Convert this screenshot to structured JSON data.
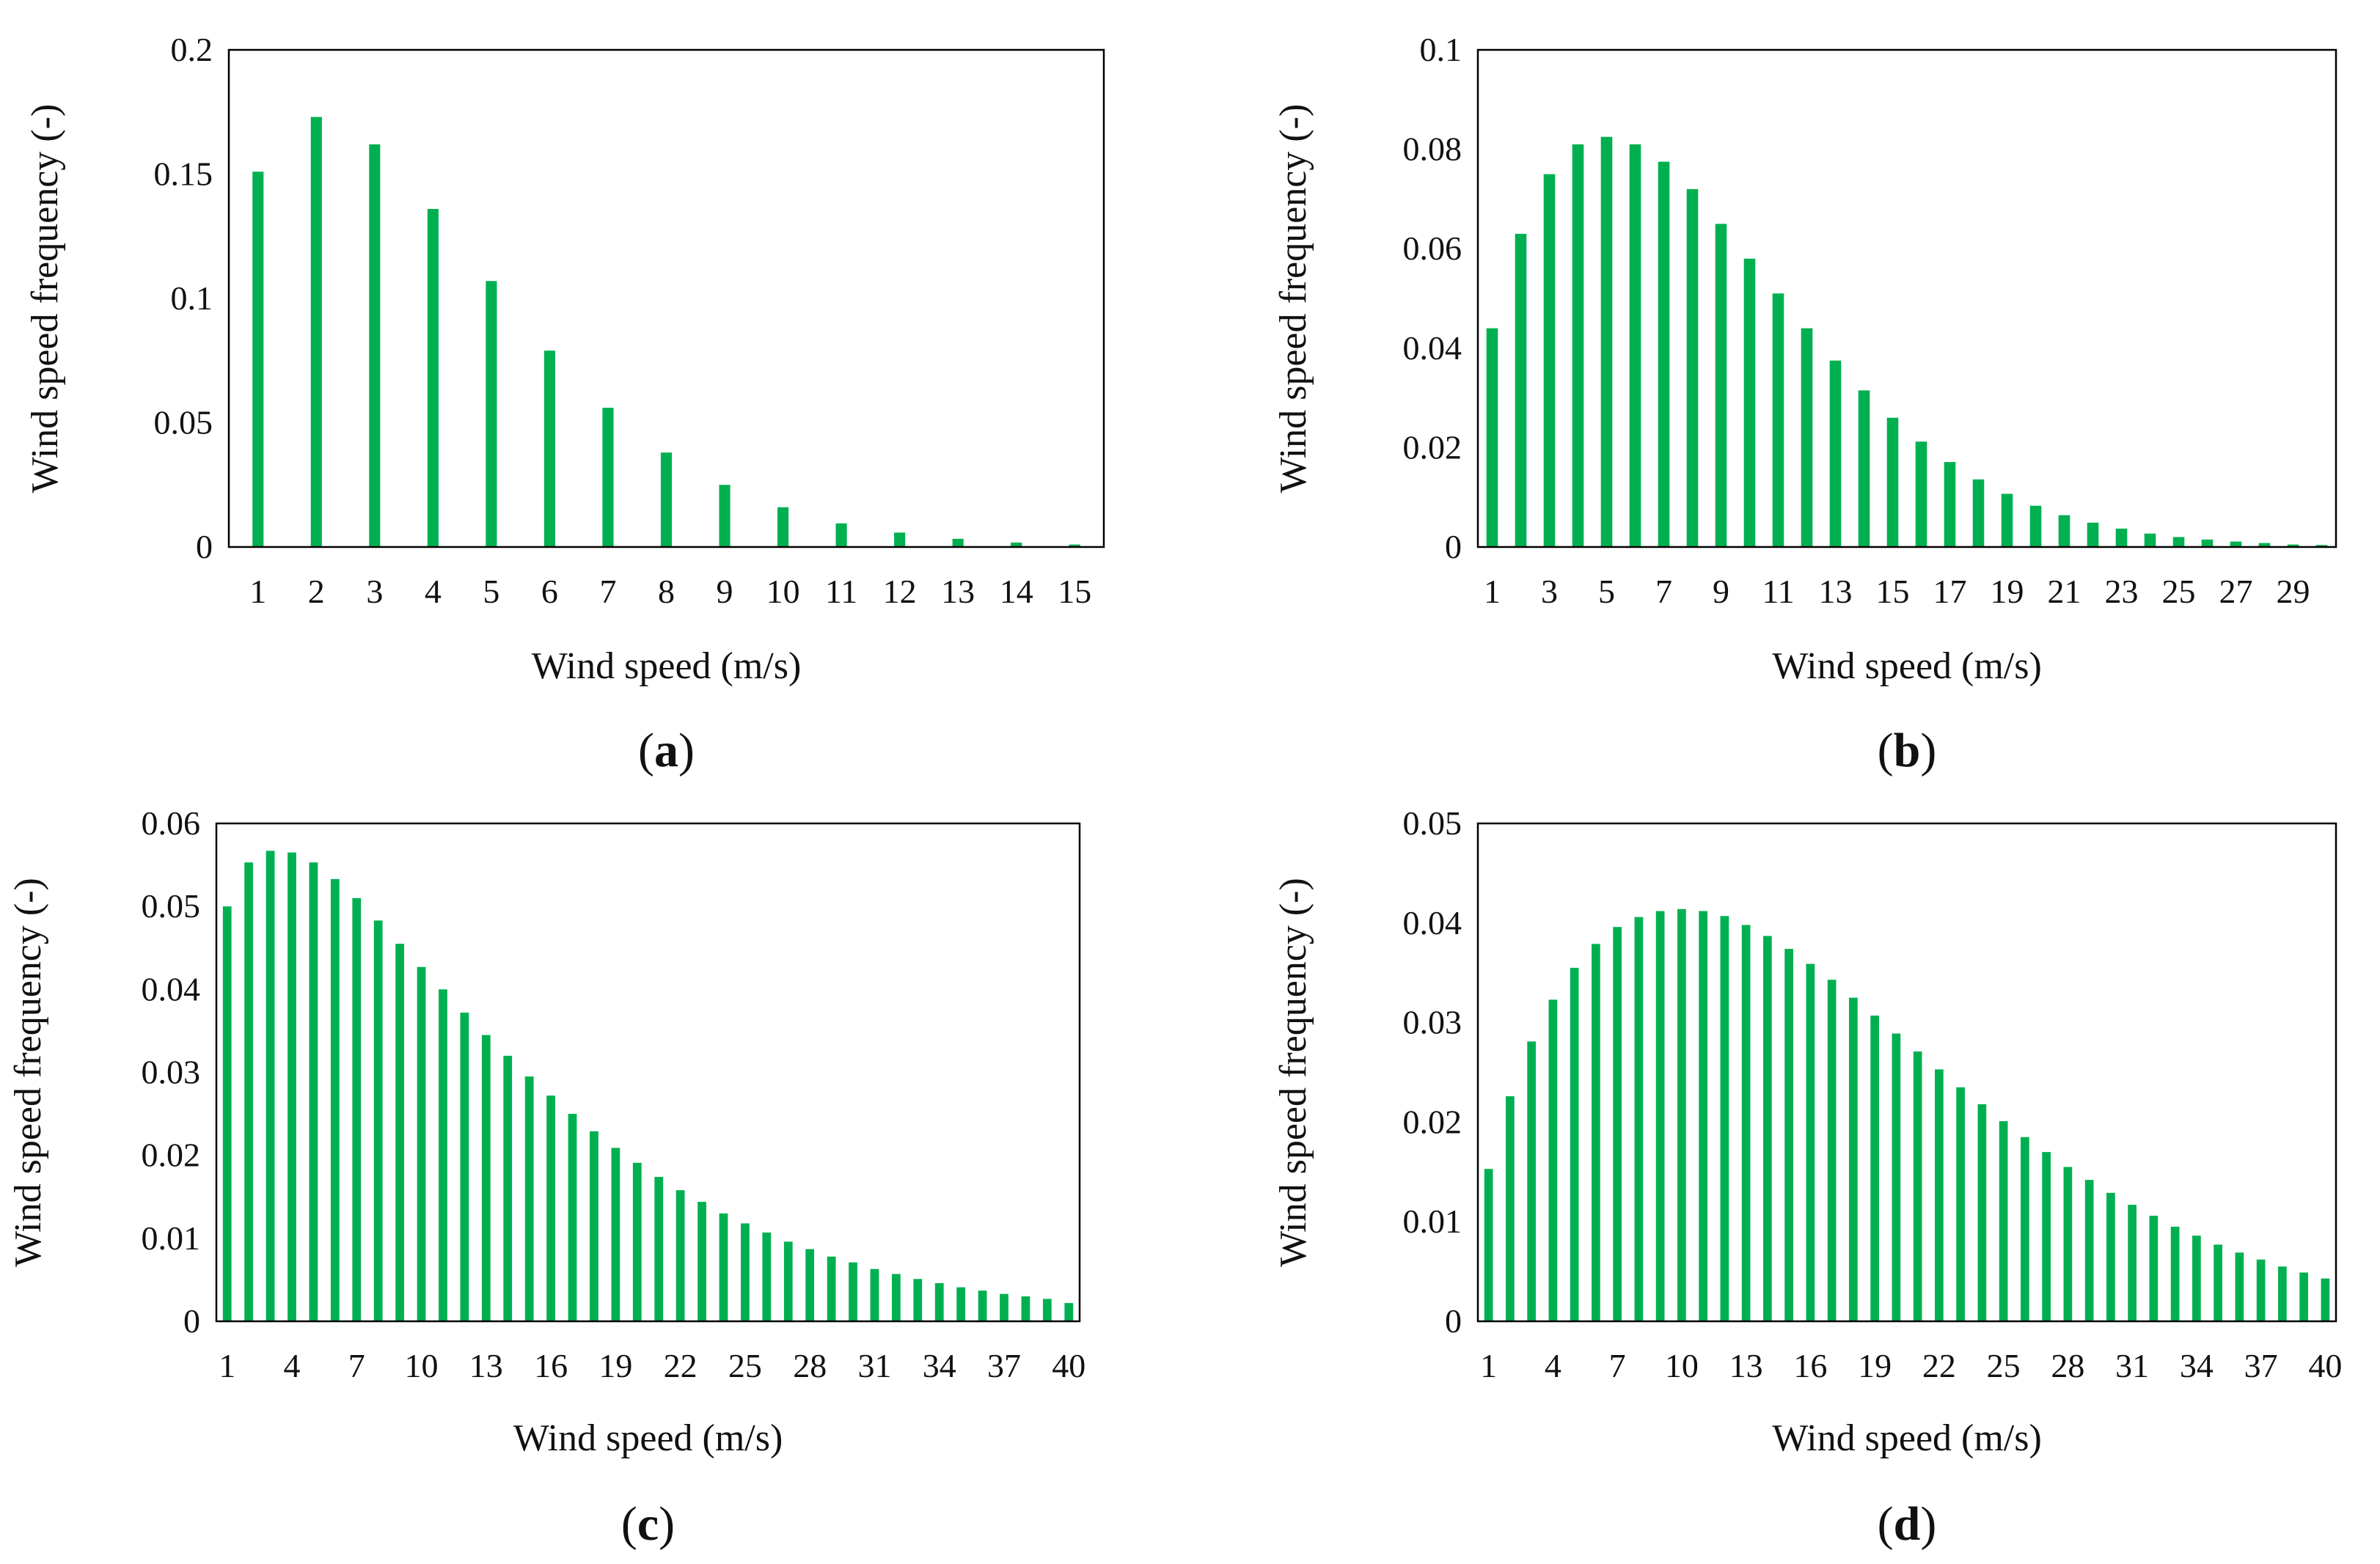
{
  "figure": {
    "bar_color": "#00b050"
  },
  "chart_data": [
    {
      "id": "a",
      "type": "bar",
      "panel_label": "a",
      "xlabel": "Wind speed (m/s)",
      "ylabel": "Wind speed frequency (-)",
      "ylim": [
        0,
        0.2
      ],
      "yticks": [
        "0",
        "0.05",
        "0.1",
        "0.15",
        "0.2"
      ],
      "tick_every": 1,
      "categories": [
        1,
        2,
        3,
        4,
        5,
        6,
        7,
        8,
        9,
        10,
        11,
        12,
        13,
        14,
        15
      ],
      "values": [
        0.151,
        0.173,
        0.162,
        0.136,
        0.107,
        0.079,
        0.056,
        0.038,
        0.025,
        0.016,
        0.0095,
        0.0058,
        0.0033,
        0.0018,
        0.001
      ]
    },
    {
      "id": "b",
      "type": "bar",
      "panel_label": "b",
      "xlabel": "Wind speed (m/s)",
      "ylabel": "Wind speed frequency (-)",
      "ylim": [
        0,
        0.1
      ],
      "yticks": [
        "0",
        "0.02",
        "0.04",
        "0.06",
        "0.08",
        "0.1"
      ],
      "tick_every": 2,
      "categories": [
        1,
        2,
        3,
        4,
        5,
        6,
        7,
        8,
        9,
        10,
        11,
        12,
        13,
        14,
        15,
        16,
        17,
        18,
        19,
        20,
        21,
        22,
        23,
        24,
        25,
        26,
        27,
        28,
        29,
        30
      ],
      "values": [
        0.044,
        0.063,
        0.075,
        0.081,
        0.0825,
        0.081,
        0.0775,
        0.072,
        0.065,
        0.058,
        0.051,
        0.044,
        0.0375,
        0.0315,
        0.026,
        0.0212,
        0.0171,
        0.0136,
        0.0107,
        0.0083,
        0.0064,
        0.0049,
        0.0037,
        0.0027,
        0.002,
        0.0015,
        0.0011,
        0.0008,
        0.0005,
        0.0004
      ]
    },
    {
      "id": "c",
      "type": "bar",
      "panel_label": "c",
      "xlabel": "Wind speed (m/s)",
      "ylabel": "Wind speed frequency (-)",
      "ylim": [
        0,
        0.06
      ],
      "yticks": [
        "0",
        "0.01",
        "0.02",
        "0.03",
        "0.04",
        "0.05",
        "0.06"
      ],
      "tick_every": 3,
      "categories": [
        1,
        2,
        3,
        4,
        5,
        6,
        7,
        8,
        9,
        10,
        11,
        12,
        13,
        14,
        15,
        16,
        17,
        18,
        19,
        20,
        21,
        22,
        23,
        24,
        25,
        26,
        27,
        28,
        29,
        30,
        31,
        32,
        33,
        34,
        35,
        36,
        37,
        38,
        39,
        40
      ],
      "values": [
        0.05,
        0.0553,
        0.0567,
        0.0565,
        0.0553,
        0.0533,
        0.051,
        0.0483,
        0.0455,
        0.0427,
        0.04,
        0.0372,
        0.0345,
        0.032,
        0.0295,
        0.0272,
        0.025,
        0.0229,
        0.0209,
        0.0191,
        0.0174,
        0.0158,
        0.0144,
        0.013,
        0.0118,
        0.0107,
        0.0096,
        0.0087,
        0.0078,
        0.0071,
        0.0063,
        0.0057,
        0.0051,
        0.0046,
        0.0041,
        0.0037,
        0.0033,
        0.003,
        0.0027,
        0.0022
      ]
    },
    {
      "id": "d",
      "type": "bar",
      "panel_label": "d",
      "xlabel": "Wind speed (m/s)",
      "ylabel": "Wind speed frequency (-)",
      "ylim": [
        0,
        0.05
      ],
      "yticks": [
        "0",
        "0.01",
        "0.02",
        "0.03",
        "0.04",
        "0.05"
      ],
      "tick_every": 3,
      "categories": [
        1,
        2,
        3,
        4,
        5,
        6,
        7,
        8,
        9,
        10,
        11,
        12,
        13,
        14,
        15,
        16,
        17,
        18,
        19,
        20,
        21,
        22,
        23,
        24,
        25,
        26,
        27,
        28,
        29,
        30,
        31,
        32,
        33,
        34,
        35,
        36,
        37,
        38,
        39,
        40
      ],
      "values": [
        0.0153,
        0.0226,
        0.0281,
        0.0323,
        0.0355,
        0.0379,
        0.0396,
        0.0406,
        0.0412,
        0.0414,
        0.0412,
        0.0407,
        0.0398,
        0.0387,
        0.0374,
        0.0359,
        0.0343,
        0.0325,
        0.0307,
        0.0289,
        0.0271,
        0.0253,
        0.0235,
        0.0218,
        0.0201,
        0.0185,
        0.017,
        0.0155,
        0.0142,
        0.0129,
        0.0117,
        0.0106,
        0.0095,
        0.0086,
        0.0077,
        0.0069,
        0.0062,
        0.0055,
        0.0049,
        0.0043
      ]
    }
  ]
}
